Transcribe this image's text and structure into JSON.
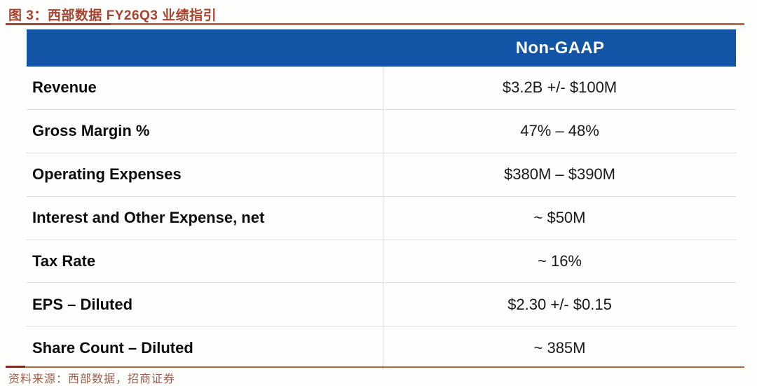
{
  "figure": {
    "title": "图 3：西部数据 FY26Q3 业绩指引"
  },
  "table": {
    "header": "Non-GAAP",
    "rows": [
      {
        "label": "Revenue",
        "value": "$3.2B +/- $100M"
      },
      {
        "label": "Gross Margin %",
        "value": "47% – 48%"
      },
      {
        "label": "Operating Expenses",
        "value": "$380M – $390M"
      },
      {
        "label": "Interest and Other Expense, net",
        "value": "~ $50M"
      },
      {
        "label": "Tax Rate",
        "value": "~ 16%"
      },
      {
        "label": "EPS – Diluted",
        "value": "$2.30 +/- $0.15"
      },
      {
        "label": "Share Count – Diluted",
        "value": "~ 385M"
      }
    ]
  },
  "footer": {
    "source": "资料来源：西部数据，招商证券"
  },
  "colors": {
    "header_bg": "#1254a6",
    "header_text": "#ffffff",
    "title_text": "#a8432f",
    "rule": "#b9653c",
    "source_text": "#9c5f4e",
    "row_divider": "#dcdcdc"
  }
}
